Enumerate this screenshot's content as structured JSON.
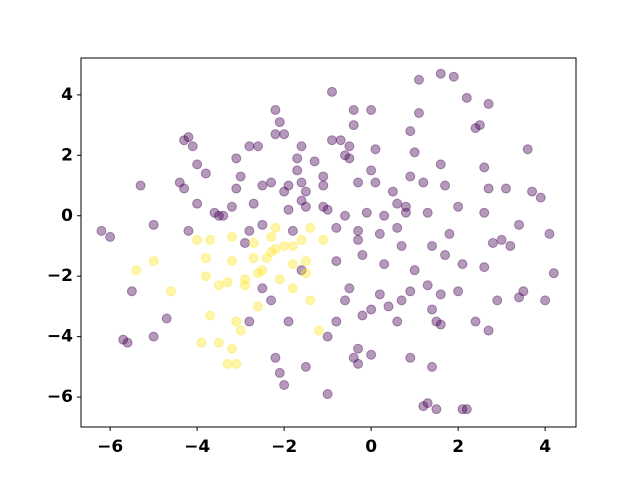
{
  "chart_data": {
    "type": "scatter",
    "xlim": [
      -6.67,
      4.71
    ],
    "ylim": [
      -6.99,
      5.22
    ],
    "xticks": [
      {
        "value": -6,
        "label": "−6"
      },
      {
        "value": -4,
        "label": "−4"
      },
      {
        "value": -2,
        "label": "−2"
      },
      0,
      2,
      4
    ],
    "yticks": [
      {
        "value": -6,
        "label": "−6"
      },
      {
        "value": -4,
        "label": "−4"
      },
      {
        "value": -2,
        "label": "−2"
      },
      0,
      2,
      4
    ],
    "grid": false,
    "alpha": 0.4,
    "series": [
      {
        "color": "#440154",
        "x": [
          -6.2,
          -6.0,
          -5.3,
          -5.5,
          -5.7,
          -5.6,
          -5.0,
          -5.0,
          -4.7,
          -4.4,
          -4.3,
          -4.2,
          -4.1,
          -4.3,
          -4.2,
          -4.0,
          -4.0,
          -3.8,
          -3.6,
          -3.5,
          -3.4,
          -3.2,
          -3.1,
          -3.0,
          -3.1,
          -2.9,
          -2.8,
          -2.8,
          -2.7,
          -2.6,
          -2.5,
          -2.5,
          -2.3,
          -2.5,
          -2.2,
          -2.2,
          -2.1,
          -2.0,
          -2.0,
          -1.9,
          -1.9,
          -1.8,
          -1.7,
          -1.7,
          -1.6,
          -1.5,
          -1.6,
          -1.6,
          -1.5,
          -1.3,
          -1.1,
          -1.1,
          -1.1,
          -1.0,
          -0.9,
          -0.9,
          -0.7,
          -0.8,
          -0.8,
          -0.6,
          -0.5,
          -0.6,
          -0.4,
          -0.4,
          -0.5,
          -0.3,
          -0.3,
          -0.3,
          -0.2,
          -0.1,
          0.0,
          0.0,
          0.1,
          0.1,
          0.2,
          0.3,
          0.3,
          0.5,
          0.6,
          0.6,
          0.7,
          0.8,
          0.8,
          0.9,
          0.9,
          1.0,
          1.0,
          1.1,
          1.1,
          1.2,
          1.3,
          1.4,
          1.6,
          1.6,
          1.7,
          1.7,
          1.8,
          2.0,
          1.9,
          2.1,
          2.2,
          2.4,
          2.5,
          2.6,
          2.7,
          2.7,
          2.8,
          3.0,
          3.1,
          3.2,
          3.4,
          3.5,
          3.6,
          3.7,
          3.9,
          4.1,
          4.2,
          4.0,
          3.4,
          2.9,
          2.6,
          2.6,
          2.0,
          1.6,
          1.4,
          1.3,
          0.9,
          0.7,
          0.4,
          0.2,
          0.0,
          -0.2,
          -0.5,
          -0.6,
          -0.8,
          -1.0,
          -0.4,
          -0.3,
          0.0,
          -0.3,
          0.9,
          1.2,
          1.3,
          1.5,
          2.1,
          2.2,
          1.4,
          0.6,
          1.5,
          1.6,
          2.4,
          2.7,
          -2.2,
          -2.0,
          -2.1,
          -1.9,
          -1.5,
          -1.0,
          -1.6,
          -2.3,
          -2.8
        ],
        "values": [
          -0.5,
          -0.7,
          1.0,
          -2.5,
          -4.1,
          -4.2,
          -4.0,
          -0.3,
          -3.4,
          1.1,
          2.5,
          2.6,
          2.3,
          0.9,
          -0.5,
          1.7,
          0.4,
          1.4,
          0.1,
          0.0,
          0.0,
          0.3,
          0.9,
          1.3,
          1.9,
          -0.9,
          2.3,
          -0.5,
          0.4,
          2.3,
          1.0,
          -0.3,
          1.1,
          -2.4,
          2.7,
          3.5,
          3.1,
          2.7,
          0.8,
          1.0,
          0.2,
          -0.5,
          1.9,
          1.5,
          2.3,
          0.8,
          0.5,
          1.1,
          0.3,
          1.8,
          1.0,
          1.3,
          0.3,
          0.2,
          2.5,
          4.1,
          2.5,
          -0.4,
          -1.5,
          2.0,
          2.3,
          0.0,
          3.5,
          3.0,
          1.9,
          1.1,
          -0.5,
          -0.8,
          -1.3,
          0.1,
          1.5,
          3.5,
          2.2,
          1.1,
          -0.6,
          0.0,
          -1.6,
          0.8,
          0.4,
          -0.4,
          -1.0,
          0.1,
          0.3,
          1.3,
          2.8,
          -1.8,
          2.1,
          3.4,
          4.5,
          1.1,
          0.1,
          -1.0,
          4.7,
          1.7,
          1.0,
          -1.3,
          -0.6,
          0.3,
          4.6,
          -1.6,
          3.9,
          2.9,
          3.0,
          1.6,
          0.9,
          3.7,
          -0.9,
          -0.8,
          0.9,
          -1.0,
          -2.7,
          -2.5,
          2.2,
          0.8,
          0.6,
          -0.6,
          -1.9,
          -2.8,
          -0.3,
          -2.8,
          0.1,
          -1.7,
          -2.5,
          -2.6,
          -3.1,
          -2.3,
          -2.5,
          -2.8,
          -3.0,
          -2.6,
          -3.1,
          -3.3,
          -2.4,
          -2.8,
          -3.5,
          -4.0,
          -4.7,
          -4.4,
          -4.6,
          -4.9,
          -4.7,
          -6.3,
          -6.2,
          -6.4,
          -6.4,
          -6.4,
          -5.0,
          -3.5,
          -3.5,
          -3.6,
          -3.5,
          -3.8,
          -4.7,
          -5.6,
          -5.2,
          -3.5,
          -5.0,
          -5.9,
          -1.8,
          -2.8,
          -3.5
        ]
      },
      {
        "color": "#fde725",
        "x": [
          -5.4,
          -5.0,
          -4.6,
          -4.0,
          -3.8,
          -3.8,
          -3.7,
          -3.5,
          -3.7,
          -3.5,
          -3.3,
          -3.2,
          -3.2,
          -3.1,
          -3.0,
          -2.9,
          -2.9,
          -2.7,
          -2.7,
          -2.6,
          -2.5,
          -2.4,
          -2.3,
          -2.3,
          -2.2,
          -2.2,
          -2.1,
          -2.0,
          -1.8,
          -1.8,
          -1.6,
          -1.5,
          -1.5,
          -1.4,
          -1.2,
          -1.1,
          -3.1,
          -3.3,
          -3.2,
          -3.9,
          -2.6,
          -1.4,
          -1.8
        ],
        "values": [
          -1.8,
          -1.5,
          -2.5,
          -0.8,
          -1.4,
          -2.0,
          -0.8,
          -2.3,
          -3.3,
          -4.2,
          -2.2,
          -0.7,
          -1.5,
          -3.5,
          -3.8,
          -2.3,
          -2.1,
          -1.4,
          -0.9,
          -3.0,
          -1.8,
          -1.4,
          -1.2,
          -0.7,
          -1.1,
          -0.4,
          -2.1,
          -1.0,
          -1.0,
          -1.6,
          -0.8,
          -1.5,
          -1.9,
          -0.4,
          -3.8,
          -0.8,
          -4.9,
          -4.9,
          -4.4,
          -4.2,
          -1.9,
          -2.8,
          -2.4
        ]
      }
    ]
  }
}
